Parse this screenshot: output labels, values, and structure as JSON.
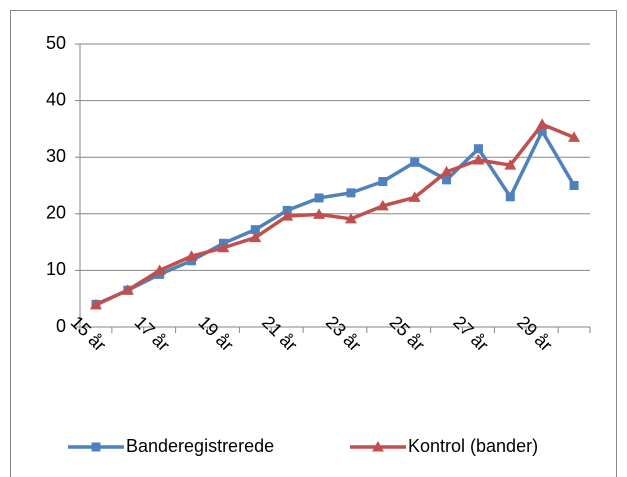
{
  "chart_data": {
    "type": "line",
    "categories": [
      "15 år",
      null,
      "17 år",
      null,
      "19 år",
      null,
      "21 år",
      null,
      "23 år",
      null,
      "25 år",
      null,
      "27 år",
      null,
      "29 år",
      null
    ],
    "series": [
      {
        "name": "Banderegistrerede",
        "color": "#4f81bd",
        "marker": "square",
        "values": [
          4.0,
          6.5,
          9.3,
          11.7,
          14.8,
          17.2,
          20.6,
          22.8,
          23.7,
          25.7,
          29.1,
          26.0,
          31.5,
          23.0,
          34.6,
          25.0
        ]
      },
      {
        "name": "Kontrol (bander)",
        "color": "#c0504d",
        "marker": "triangle",
        "values": [
          3.9,
          6.5,
          10.0,
          12.5,
          14.0,
          15.8,
          19.6,
          19.9,
          19.1,
          21.4,
          22.9,
          27.4,
          29.5,
          28.6,
          35.8,
          33.5
        ]
      }
    ],
    "ylim": [
      0,
      50
    ],
    "yticks": [
      0,
      10,
      20,
      30,
      40,
      50
    ],
    "grid": true,
    "legend": "bottom"
  }
}
